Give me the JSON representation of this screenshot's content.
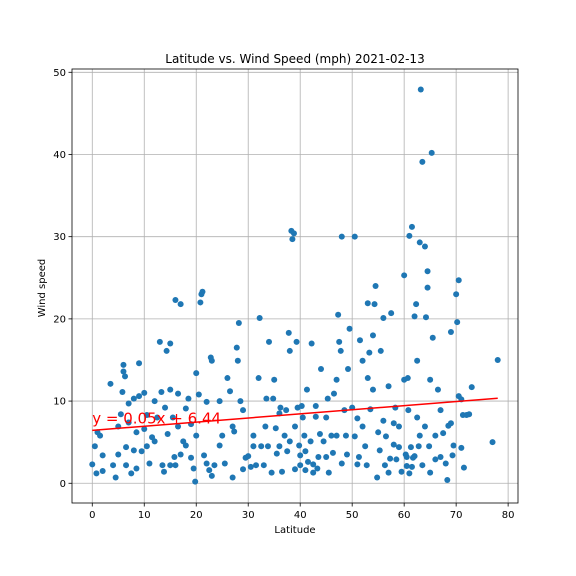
{
  "chart_data": {
    "type": "scatter",
    "title": "Latitude vs. Wind Speed (mph) 2021-02-13",
    "xlabel": "Latitude",
    "ylabel": "Wind speed",
    "xlim": [
      -3.9,
      81.9
    ],
    "ylim": [
      -2.4,
      50.4
    ],
    "xticks": [
      0,
      10,
      20,
      30,
      40,
      50,
      60,
      70,
      80
    ],
    "yticks": [
      0,
      10,
      20,
      30,
      40,
      50
    ],
    "grid": true,
    "marker_color": "#1f77b4",
    "regression": {
      "slope": 0.05,
      "intercept": 6.44,
      "x_range": [
        0,
        78
      ],
      "color": "#ff0000",
      "label": "y = 0.05x + 6.44",
      "label_x": 0,
      "label_y": 7.3
    },
    "points": [
      [
        0,
        2.3
      ],
      [
        0.5,
        4.5
      ],
      [
        0.8,
        1.2
      ],
      [
        1,
        6.2
      ],
      [
        1.5,
        5.8
      ],
      [
        2,
        1.5
      ],
      [
        2,
        3.4
      ],
      [
        3.5,
        12.1
      ],
      [
        4,
        2.2
      ],
      [
        4.5,
        0.7
      ],
      [
        5,
        6.9
      ],
      [
        5,
        3.5
      ],
      [
        5.5,
        8.4
      ],
      [
        5.8,
        11.1
      ],
      [
        6,
        14.4
      ],
      [
        6,
        13.6
      ],
      [
        6.3,
        13.0
      ],
      [
        6.5,
        4.4
      ],
      [
        6.5,
        2.2
      ],
      [
        7,
        9.7
      ],
      [
        7,
        7.4
      ],
      [
        7.5,
        1.2
      ],
      [
        8,
        4.0
      ],
      [
        8,
        10.3
      ],
      [
        8.5,
        6.2
      ],
      [
        8.5,
        1.8
      ],
      [
        9,
        14.6
      ],
      [
        9,
        10.6
      ],
      [
        9.5,
        3.9
      ],
      [
        10,
        11.0
      ],
      [
        10,
        6.6
      ],
      [
        10.5,
        4.5
      ],
      [
        10.5,
        8.3
      ],
      [
        11,
        2.4
      ],
      [
        11.5,
        5.6
      ],
      [
        12,
        10.0
      ],
      [
        12,
        5.1
      ],
      [
        12.5,
        8.0
      ],
      [
        13,
        17.2
      ],
      [
        13.3,
        11.1
      ],
      [
        13.5,
        2.2
      ],
      [
        13.8,
        1.4
      ],
      [
        14,
        9.2
      ],
      [
        14.3,
        16.1
      ],
      [
        14.5,
        6.0
      ],
      [
        15,
        11.4
      ],
      [
        15,
        17.0
      ],
      [
        15,
        2.2
      ],
      [
        15.5,
        8.0
      ],
      [
        15.8,
        3.2
      ],
      [
        16,
        22.3
      ],
      [
        16,
        2.2
      ],
      [
        16.5,
        6.9
      ],
      [
        16.5,
        10.9
      ],
      [
        17,
        21.8
      ],
      [
        17,
        3.5
      ],
      [
        17.5,
        5.1
      ],
      [
        18,
        9.1
      ],
      [
        18,
        4.6
      ],
      [
        18.5,
        10.3
      ],
      [
        19,
        7.2
      ],
      [
        19,
        3.1
      ],
      [
        19.5,
        1.8
      ],
      [
        19.8,
        0.2
      ],
      [
        20,
        13.4
      ],
      [
        20,
        5.8
      ],
      [
        20.5,
        10.8
      ],
      [
        20.8,
        22.0
      ],
      [
        21,
        23.0
      ],
      [
        21.2,
        23.3
      ],
      [
        21.5,
        3.4
      ],
      [
        22,
        9.9
      ],
      [
        22,
        2.4
      ],
      [
        22.5,
        1.6
      ],
      [
        22.8,
        15.3
      ],
      [
        23,
        14.9
      ],
      [
        23,
        0.9
      ],
      [
        23.5,
        2.2
      ],
      [
        24.5,
        10.0
      ],
      [
        24.5,
        4.6
      ],
      [
        25,
        5.8
      ],
      [
        25.5,
        2.4
      ],
      [
        26,
        12.8
      ],
      [
        26.5,
        11.2
      ],
      [
        27,
        6.9
      ],
      [
        27,
        0.7
      ],
      [
        27.3,
        6.3
      ],
      [
        27.8,
        16.5
      ],
      [
        28,
        14.9
      ],
      [
        28.2,
        19.5
      ],
      [
        28.5,
        10.0
      ],
      [
        29,
        8.9
      ],
      [
        29,
        1.7
      ],
      [
        29.5,
        3.1
      ],
      [
        30,
        3.3
      ],
      [
        30.5,
        2.0
      ],
      [
        31,
        5.8
      ],
      [
        31,
        4.5
      ],
      [
        31.5,
        2.2
      ],
      [
        32,
        12.8
      ],
      [
        32.2,
        20.1
      ],
      [
        32.5,
        4.5
      ],
      [
        33,
        2.2
      ],
      [
        33.3,
        6.9
      ],
      [
        33.5,
        10.3
      ],
      [
        33.8,
        4.5
      ],
      [
        34,
        17.2
      ],
      [
        34.5,
        1.3
      ],
      [
        34.8,
        10.3
      ],
      [
        35,
        12.6
      ],
      [
        35.3,
        6.7
      ],
      [
        35.5,
        3.6
      ],
      [
        36,
        8.5
      ],
      [
        36,
        4.5
      ],
      [
        36.2,
        9.2
      ],
      [
        36.5,
        1.4
      ],
      [
        37,
        5.8
      ],
      [
        37.3,
        8.9
      ],
      [
        37.5,
        3.9
      ],
      [
        37.8,
        18.3
      ],
      [
        38,
        16.1
      ],
      [
        38,
        5.1
      ],
      [
        38.3,
        30.7
      ],
      [
        38.5,
        29.7
      ],
      [
        38.8,
        30.4
      ],
      [
        39,
        6.9
      ],
      [
        39,
        1.7
      ],
      [
        39.3,
        17.2
      ],
      [
        39.5,
        9.2
      ],
      [
        39.8,
        4.6
      ],
      [
        40,
        3.4
      ],
      [
        40,
        2.2
      ],
      [
        40.3,
        9.4
      ],
      [
        40.5,
        8.0
      ],
      [
        40.8,
        5.8
      ],
      [
        41,
        1.6
      ],
      [
        41,
        3.9
      ],
      [
        41.3,
        11.4
      ],
      [
        41.5,
        2.6
      ],
      [
        42,
        5.1
      ],
      [
        42.2,
        17.0
      ],
      [
        42.5,
        1.3
      ],
      [
        42.5,
        2.3
      ],
      [
        43,
        9.4
      ],
      [
        43,
        8.1
      ],
      [
        43.3,
        1.8
      ],
      [
        43.5,
        3.2
      ],
      [
        43.8,
        6.0
      ],
      [
        44,
        13.9
      ],
      [
        44.5,
        5.1
      ],
      [
        45,
        8.0
      ],
      [
        45,
        3.2
      ],
      [
        45.3,
        10.3
      ],
      [
        45.5,
        1.3
      ],
      [
        46,
        5.8
      ],
      [
        46.3,
        3.7
      ],
      [
        46.5,
        10.9
      ],
      [
        47,
        12.6
      ],
      [
        47,
        5.8
      ],
      [
        47.3,
        20.5
      ],
      [
        47.5,
        17.2
      ],
      [
        47.8,
        16.1
      ],
      [
        48,
        30.0
      ],
      [
        48,
        2.4
      ],
      [
        48.5,
        8.9
      ],
      [
        48.8,
        5.8
      ],
      [
        49,
        3.5
      ],
      [
        49.2,
        13.9
      ],
      [
        49.5,
        18.8
      ],
      [
        50,
        9.2
      ],
      [
        50.5,
        5.7
      ],
      [
        50.5,
        30.0
      ],
      [
        51,
        2.3
      ],
      [
        51,
        7.9
      ],
      [
        51.3,
        3.2
      ],
      [
        51.5,
        17.4
      ],
      [
        52,
        6.9
      ],
      [
        52,
        14.9
      ],
      [
        52.5,
        4.5
      ],
      [
        52.8,
        2.2
      ],
      [
        53,
        12.8
      ],
      [
        53,
        21.9
      ],
      [
        53.3,
        15.9
      ],
      [
        53.5,
        9.0
      ],
      [
        54,
        11.4
      ],
      [
        54,
        18.0
      ],
      [
        54.3,
        21.8
      ],
      [
        54.5,
        24.0
      ],
      [
        54.8,
        0.7
      ],
      [
        55,
        6.2
      ],
      [
        55.3,
        4.0
      ],
      [
        55.5,
        16.1
      ],
      [
        56,
        20.1
      ],
      [
        56,
        7.6
      ],
      [
        56.3,
        2.2
      ],
      [
        56.5,
        5.7
      ],
      [
        57,
        11.8
      ],
      [
        57,
        1.3
      ],
      [
        57.3,
        3.0
      ],
      [
        57.5,
        20.7
      ],
      [
        58,
        7.3
      ],
      [
        58,
        4.7
      ],
      [
        58.3,
        9.2
      ],
      [
        58.5,
        2.9
      ],
      [
        59,
        4.4
      ],
      [
        59,
        6.9
      ],
      [
        59.5,
        1.4
      ],
      [
        60,
        25.3
      ],
      [
        60,
        12.6
      ],
      [
        60.3,
        3.5
      ],
      [
        60.5,
        3.2
      ],
      [
        60.5,
        2.1
      ],
      [
        60.7,
        12.8
      ],
      [
        60.8,
        8.9
      ],
      [
        61,
        30.1
      ],
      [
        61,
        1.2
      ],
      [
        61.3,
        4.4
      ],
      [
        61.5,
        31.2
      ],
      [
        61.5,
        2.0
      ],
      [
        61.7,
        3.1
      ],
      [
        62,
        20.3
      ],
      [
        62,
        3.3
      ],
      [
        62.3,
        21.8
      ],
      [
        62.5,
        14.9
      ],
      [
        62.5,
        8.0
      ],
      [
        62.8,
        4.5
      ],
      [
        63,
        29.3
      ],
      [
        63,
        5.8
      ],
      [
        63.2,
        47.9
      ],
      [
        63.5,
        39.1
      ],
      [
        63.5,
        2.2
      ],
      [
        64,
        28.8
      ],
      [
        64,
        6.9
      ],
      [
        64.2,
        20.2
      ],
      [
        64.5,
        23.8
      ],
      [
        64.5,
        25.8
      ],
      [
        64.8,
        4.5
      ],
      [
        65,
        12.6
      ],
      [
        65,
        1.3
      ],
      [
        65.3,
        40.2
      ],
      [
        65.5,
        17.7
      ],
      [
        66,
        5.8
      ],
      [
        66,
        2.9
      ],
      [
        66.5,
        11.4
      ],
      [
        67,
        3.2
      ],
      [
        67,
        8.9
      ],
      [
        67.5,
        6.1
      ],
      [
        68,
        2.4
      ],
      [
        68.3,
        0.4
      ],
      [
        68.5,
        7.0
      ],
      [
        69,
        7.3
      ],
      [
        69,
        18.4
      ],
      [
        69.3,
        3.4
      ],
      [
        69.5,
        4.6
      ],
      [
        70,
        23.0
      ],
      [
        70.2,
        19.6
      ],
      [
        70.5,
        24.7
      ],
      [
        70.5,
        10.6
      ],
      [
        71,
        10.2
      ],
      [
        71,
        4.3
      ],
      [
        71.3,
        8.3
      ],
      [
        71.5,
        1.9
      ],
      [
        72,
        8.3
      ],
      [
        72.5,
        8.4
      ],
      [
        73,
        11.7
      ],
      [
        77,
        5.0
      ],
      [
        78,
        15.0
      ]
    ]
  }
}
